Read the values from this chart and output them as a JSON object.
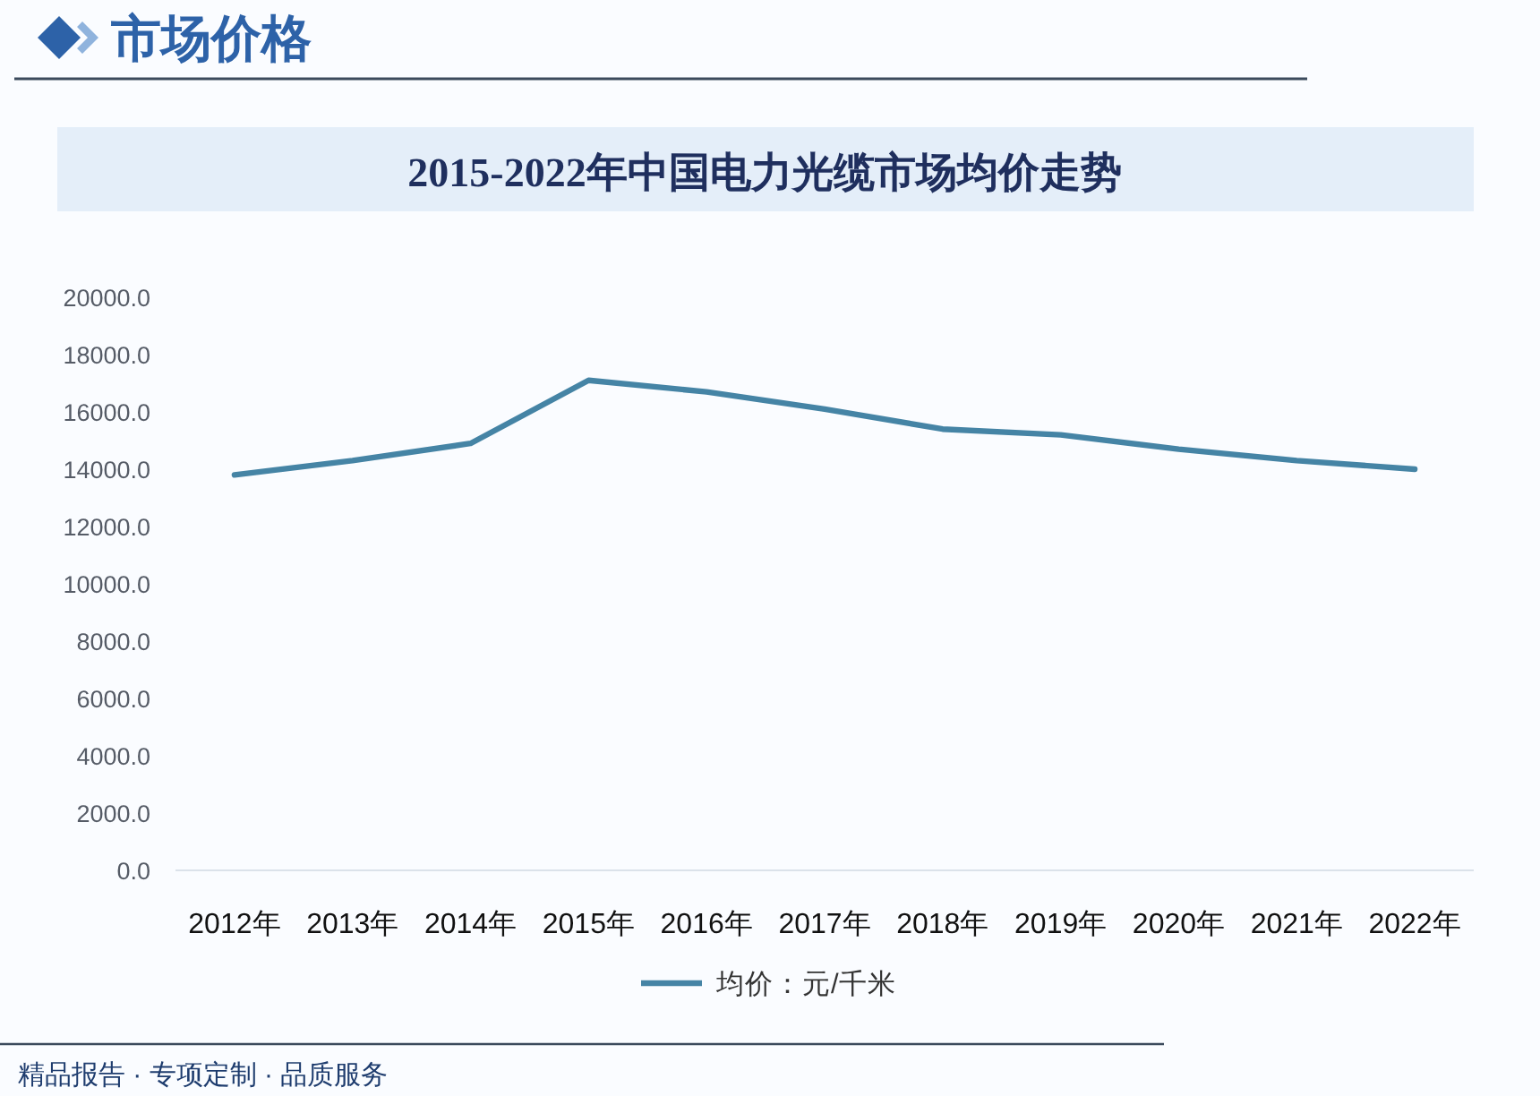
{
  "chart_data": {
    "type": "line",
    "title": "2015-2022年中国电力光缆市场均价走势",
    "annotations": [
      "市场价格",
      "精品报告 · 专项定制 · 品质服务"
    ],
    "categories": [
      "2012年",
      "2013年",
      "2014年",
      "2015年",
      "2016年",
      "2017年",
      "2018年",
      "2019年",
      "2020年",
      "2021年",
      "2022年"
    ],
    "series": [
      {
        "name": "均价：元/千米",
        "color": "#4584a5",
        "values": [
          13800,
          14300,
          14900,
          17100,
          16700,
          16100,
          15400,
          15200,
          14700,
          14300,
          14000
        ]
      }
    ],
    "ylim": [
      0,
      20000
    ],
    "yticks": [
      {
        "value": 0,
        "label": "0.0"
      },
      {
        "value": 2000,
        "label": "2000.0"
      },
      {
        "value": 4000,
        "label": "4000.0"
      },
      {
        "value": 6000,
        "label": "6000.0"
      },
      {
        "value": 8000,
        "label": "8000.0"
      },
      {
        "value": 10000,
        "label": "10000.0"
      },
      {
        "value": 12000,
        "label": "12000.0"
      },
      {
        "value": 14000,
        "label": "14000.0"
      },
      {
        "value": 16000,
        "label": "16000.0"
      },
      {
        "value": 18000,
        "label": "18000.0"
      },
      {
        "value": 20000,
        "label": "20000.0"
      }
    ],
    "legend": "bottom"
  }
}
